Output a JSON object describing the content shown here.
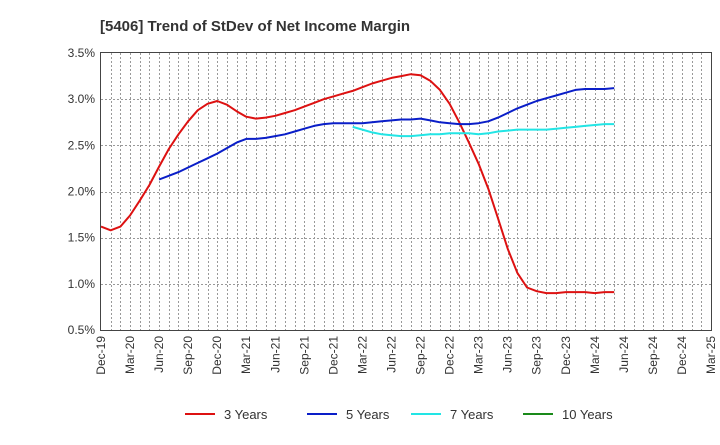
{
  "chart_data": {
    "type": "line",
    "title": "[5406]  Trend of StDev of Net Income Margin",
    "xlabel": "",
    "ylabel": "",
    "ylim": [
      0.5,
      3.5
    ],
    "y_ticks": [
      0.5,
      1.0,
      1.5,
      2.0,
      2.5,
      3.0,
      3.5
    ],
    "y_tick_labels": [
      "0.5%",
      "1.0%",
      "1.5%",
      "2.0%",
      "2.5%",
      "3.0%",
      "3.5%"
    ],
    "x_tick_labels": [
      "Dec-19",
      "Mar-20",
      "Jun-20",
      "Sep-20",
      "Dec-20",
      "Mar-21",
      "Jun-21",
      "Sep-21",
      "Dec-21",
      "Mar-22",
      "Jun-22",
      "Sep-22",
      "Dec-22",
      "Mar-23",
      "Jun-23",
      "Sep-23",
      "Dec-23",
      "Mar-24",
      "Jun-24",
      "Sep-24",
      "Dec-24",
      "Mar-25"
    ],
    "grid": true,
    "legend_position": "bottom",
    "series": [
      {
        "name": "3 Years",
        "color": "#dd1111",
        "start_index": 0,
        "values": [
          1.62,
          1.58,
          1.62,
          1.74,
          1.9,
          2.07,
          2.27,
          2.46,
          2.62,
          2.76,
          2.88,
          2.95,
          2.98,
          2.94,
          2.87,
          2.81,
          2.79,
          2.8,
          2.82,
          2.85,
          2.88,
          2.92,
          2.96,
          3.0,
          3.03,
          3.06,
          3.09,
          3.13,
          3.17,
          3.2,
          3.23,
          3.25,
          3.27,
          3.26,
          3.2,
          3.1,
          2.95,
          2.75,
          2.53,
          2.3,
          2.03,
          1.71,
          1.38,
          1.12,
          0.96,
          0.92,
          0.9,
          0.9,
          0.91,
          0.91,
          0.91,
          0.9,
          0.91,
          0.91
        ]
      },
      {
        "name": "5 Years",
        "color": "#0a1ec8",
        "start_index": 6,
        "values": [
          2.13,
          2.17,
          2.21,
          2.26,
          2.31,
          2.36,
          2.41,
          2.47,
          2.53,
          2.57,
          2.57,
          2.58,
          2.6,
          2.62,
          2.65,
          2.68,
          2.71,
          2.73,
          2.74,
          2.74,
          2.74,
          2.74,
          2.75,
          2.76,
          2.77,
          2.78,
          2.78,
          2.79,
          2.77,
          2.75,
          2.74,
          2.73,
          2.73,
          2.74,
          2.76,
          2.8,
          2.85,
          2.9,
          2.94,
          2.98,
          3.01,
          3.04,
          3.07,
          3.1,
          3.11,
          3.11,
          3.11,
          3.12
        ]
      },
      {
        "name": "7 Years",
        "color": "#22e5e5",
        "start_index": 26,
        "values": [
          2.7,
          2.67,
          2.64,
          2.62,
          2.61,
          2.6,
          2.6,
          2.61,
          2.62,
          2.62,
          2.63,
          2.63,
          2.63,
          2.62,
          2.63,
          2.65,
          2.66,
          2.67,
          2.67,
          2.67,
          2.67,
          2.68,
          2.69,
          2.7,
          2.71,
          2.72,
          2.73,
          2.73
        ]
      },
      {
        "name": "10 Years",
        "color": "#1a8a1a",
        "start_index": 0,
        "values": []
      }
    ]
  }
}
